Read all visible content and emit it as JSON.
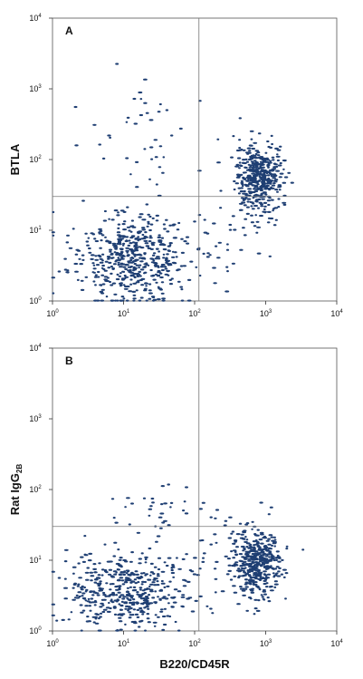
{
  "chart_data": [
    {
      "type": "scatter",
      "panel_label": "A",
      "xlabel": "",
      "ylabel": "BTLA",
      "xscale": "log",
      "yscale": "log",
      "xlim": [
        1,
        10000
      ],
      "ylim": [
        1,
        10000
      ],
      "xticks": [
        "10",
        "10",
        "10",
        "10",
        "10"
      ],
      "xtick_exponents": [
        "0",
        "1",
        "2",
        "3",
        "4"
      ],
      "yticks": [
        "10",
        "10",
        "10",
        "10",
        "10"
      ],
      "ytick_exponents": [
        "0",
        "1",
        "2",
        "3",
        "4"
      ],
      "quadrant_gates": {
        "x": 115,
        "y": 30
      },
      "point_color": "#1f3f73",
      "clusters": [
        {
          "center": [
            12,
            4
          ],
          "spread": [
            0.42,
            0.32
          ],
          "n": 520
        },
        {
          "center": [
            800,
            55
          ],
          "spread": [
            0.17,
            0.24
          ],
          "n": 430
        },
        {
          "center": [
            25,
            220
          ],
          "spread": [
            0.45,
            0.45
          ],
          "n": 40
        },
        {
          "center": [
            300,
            10
          ],
          "spread": [
            0.35,
            0.35
          ],
          "n": 30
        }
      ]
    },
    {
      "type": "scatter",
      "panel_label": "B",
      "xlabel": "B220/CD45R",
      "ylabel": "Rat IgG",
      "ylabel_subscript": "2B",
      "xscale": "log",
      "yscale": "log",
      "xlim": [
        1,
        10000
      ],
      "ylim": [
        1,
        10000
      ],
      "xticks": [
        "10",
        "10",
        "10",
        "10",
        "10"
      ],
      "xtick_exponents": [
        "0",
        "1",
        "2",
        "3",
        "4"
      ],
      "yticks": [
        "10",
        "10",
        "10",
        "10",
        "10"
      ],
      "ytick_exponents": [
        "0",
        "1",
        "2",
        "3",
        "4"
      ],
      "quadrant_gates": {
        "x": 115,
        "y": 30
      },
      "point_color": "#1f3f73",
      "clusters": [
        {
          "center": [
            12,
            3.5
          ],
          "spread": [
            0.42,
            0.28
          ],
          "n": 480
        },
        {
          "center": [
            750,
            9
          ],
          "spread": [
            0.17,
            0.24
          ],
          "n": 420
        },
        {
          "center": [
            25,
            50
          ],
          "spread": [
            0.45,
            0.2
          ],
          "n": 35
        },
        {
          "center": [
            300,
            15
          ],
          "spread": [
            0.3,
            0.3
          ],
          "n": 20
        }
      ]
    }
  ]
}
